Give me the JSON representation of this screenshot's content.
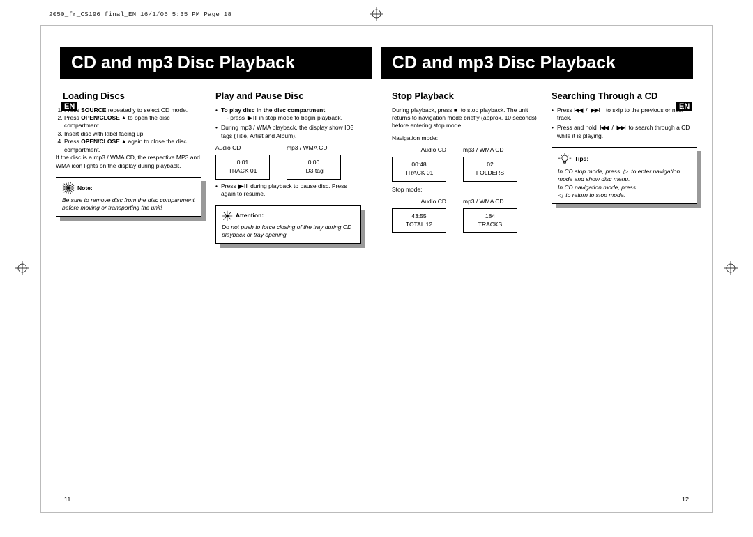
{
  "header_meta": "2050_fr_CS196 final_EN  16/1/06  5:35 PM  Page 18",
  "en_badge": "EN",
  "page_left": {
    "title": "CD and mp3 Disc Playback",
    "page_num": "11",
    "loading": {
      "heading": "Loading Discs",
      "steps": [
        "Press <b>SOURCE</b> repeatedly to select CD mode.",
        "Press <b>OPEN/CLOSE</b> <span class='eject'>▲</span> to open the disc compartment.",
        "Insert disc with label facing up.",
        "Press <b>OPEN/CLOSE</b> <span class='eject'>▲</span> again to close the disc compartment."
      ],
      "after": "If the disc is a mp3 / WMA CD, the respective MP3 and WMA icon lights on the display during playback.",
      "note_label": "Note:",
      "note_body": "Be sure to remove disc from the disc compartment before moving or transporting the unit!"
    },
    "play": {
      "heading": "Play and Pause Disc",
      "items": [
        "<b>To play disc in the disc compartment</b>,<div class='sub'>- press&nbsp; <span class='play'>▶ǀǀ</span> &nbsp;in stop mode to begin playback.</div>",
        "During mp3 / WMA playback, the display show ID3 tags (Title, Artist and Album)."
      ],
      "disp_audio_hd": "Audio CD",
      "disp_mp3_hd": "mp3 / WMA CD",
      "disp_audio_l1": "0:01",
      "disp_audio_l2": "TRACK 01",
      "disp_mp3_l1": "0:00",
      "disp_mp3_l2": "ID3 tag",
      "item3": "Press&nbsp; <span class='play'>▶ǀǀ</span> &nbsp;during playback to pause disc. Press again to resume.",
      "attn_label": "Attention:",
      "attn_body": "Do not push to force closing of the tray during CD playback or tray opening."
    }
  },
  "page_right": {
    "title": "CD and mp3 Disc Playback",
    "page_num": "12",
    "stop": {
      "heading": "Stop Playback",
      "p1": "During playback, press <span class='stop'>■</span> &nbsp;to stop playback. The unit returns to navigation mode briefly (approx. 10 seconds) before entering stop mode.",
      "nav_label": "Navigation mode:",
      "stop_label": "Stop mode:",
      "disp_audio_hd": "Audio CD",
      "disp_mp3_hd": "mp3 / WMA CD",
      "nav_audio_l1": "00:48",
      "nav_audio_l2": "TRACK 01",
      "nav_mp3_l1": "02",
      "nav_mp3_l2": "FOLDERS",
      "stop_audio_l1": "43:55",
      "stop_audio_l2": "TOTAL 12",
      "stop_mp3_l1": "184",
      "stop_mp3_l2": "TRACKS"
    },
    "search": {
      "heading": "Searching Through a CD",
      "items": [
        "Press <span class='skip'>ǀ◀◀</span> &nbsp;/&nbsp; <span class='skip'>▶▶ǀ</span> &nbsp;&nbsp;&nbsp;to skip to the previous or next track.",
        "Press and hold &nbsp;<span class='skip'>ǀ◀◀</span> &nbsp;/&nbsp; <span class='skip'>▶▶ǀ</span>&nbsp; to search through a CD while it is playing."
      ],
      "tips_label": "Tips:",
      "tips_body": "In CD stop mode, press &nbsp;▷&nbsp; to enter navigation mode and show disc menu.<br>In CD navigation mode, press<br>◁ &nbsp;to return to stop mode."
    }
  }
}
